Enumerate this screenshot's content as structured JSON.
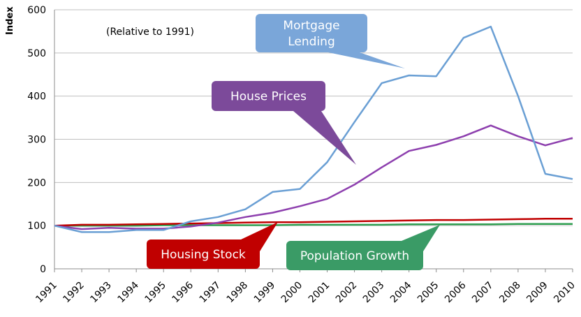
{
  "chart_data": {
    "type": "line",
    "ylabel": "Index",
    "annotation": "(Relative to 1991)",
    "ylim": [
      0,
      600
    ],
    "yticks": [
      0,
      100,
      200,
      300,
      400,
      500,
      600
    ],
    "grid": "horizontal",
    "x": [
      "1991",
      "1992",
      "1993",
      "1994",
      "1995",
      "1996",
      "1997",
      "1998",
      "1999",
      "2000",
      "2001",
      "2002",
      "2003",
      "2004",
      "2005",
      "2006",
      "2007",
      "2008",
      "2009",
      "2010"
    ],
    "series": [
      {
        "key": "mortgage",
        "color": "#6a9fd4",
        "values": [
          100,
          85,
          85,
          90,
          90,
          110,
          120,
          138,
          178,
          185,
          247,
          340,
          430,
          448,
          446,
          535,
          561,
          400,
          220,
          208
        ]
      },
      {
        "key": "house_prices",
        "color": "#8d3fae",
        "values": [
          100,
          92,
          95,
          93,
          93,
          98,
          107,
          120,
          130,
          145,
          162,
          195,
          235,
          273,
          287,
          307,
          332,
          307,
          286,
          303
        ]
      },
      {
        "key": "housing_stock",
        "color": "#c00000",
        "values": [
          100,
          102,
          102,
          103,
          104,
          105,
          106,
          107,
          108,
          108,
          109,
          110,
          111,
          112,
          113,
          113,
          114,
          115,
          116,
          116
        ]
      },
      {
        "key": "population",
        "color": "#2e9e4f",
        "values": [
          100,
          100,
          100,
          100,
          101,
          101,
          101,
          101,
          101,
          102,
          102,
          102,
          102,
          103,
          103,
          103,
          103,
          104,
          104,
          104
        ]
      }
    ],
    "callouts": [
      {
        "key": "mortgage",
        "lines": [
          "Mortgage",
          "Lending"
        ],
        "fill": "#7aa6d9"
      },
      {
        "key": "house_prices",
        "lines": [
          "House Prices"
        ],
        "fill": "#7c4a9a"
      },
      {
        "key": "housing_stock",
        "lines": [
          "Housing Stock"
        ],
        "fill": "#c00000"
      },
      {
        "key": "population",
        "lines": [
          "Population Growth"
        ],
        "fill": "#3a9b66"
      }
    ]
  }
}
